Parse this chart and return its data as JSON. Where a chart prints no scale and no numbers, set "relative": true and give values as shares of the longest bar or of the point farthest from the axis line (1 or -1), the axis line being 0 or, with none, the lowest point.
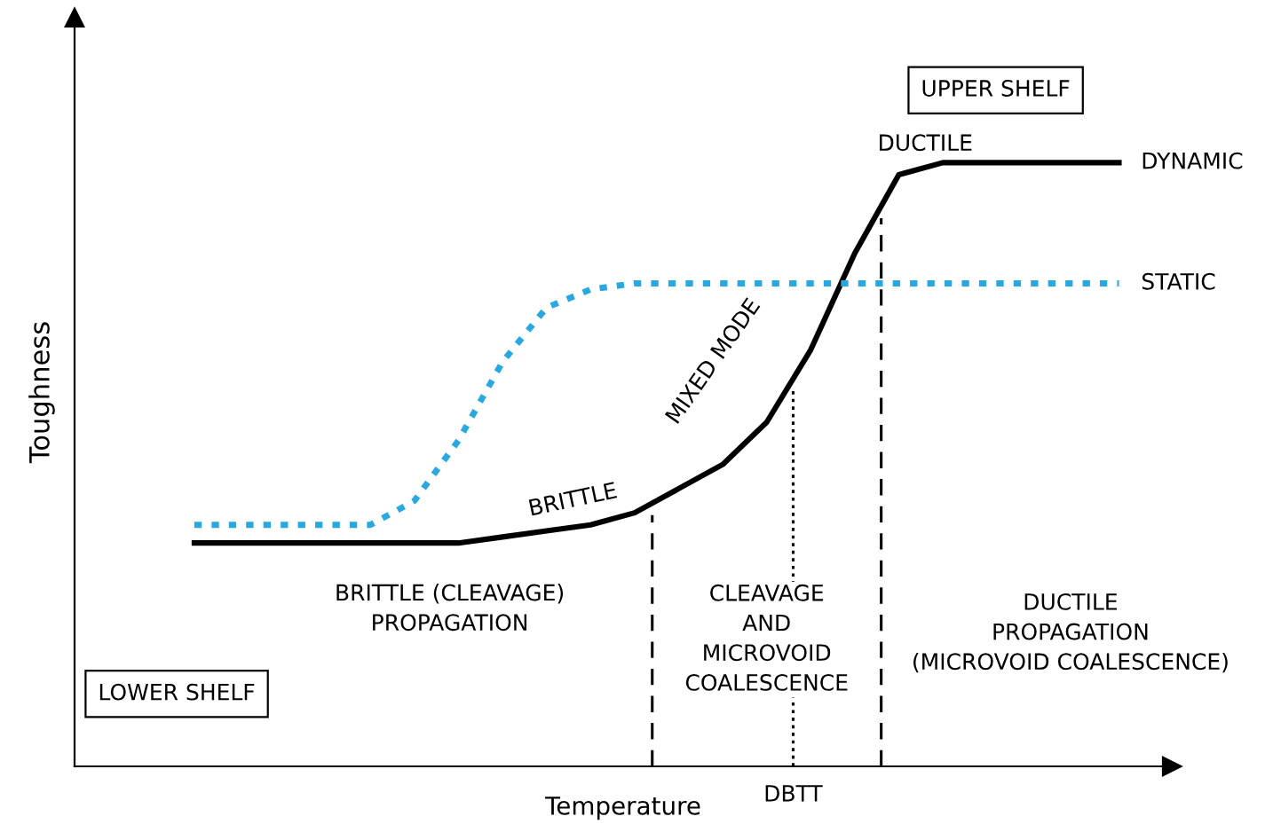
{
  "chart_data": {
    "type": "line",
    "relative": true,
    "xlabel": "Temperature",
    "ylabel": "Toughness",
    "categories": [
      null,
      null,
      null,
      null,
      null,
      null,
      null,
      null,
      null,
      null,
      null,
      null,
      null,
      null,
      null,
      null,
      null,
      null,
      null,
      null,
      null,
      null
    ],
    "series": [
      {
        "name": "DYNAMIC",
        "color": "#000000",
        "line_style": "solid",
        "values": [
          0.37,
          0.37,
          0.37,
          0.37,
          0.37,
          0.37,
          0.37,
          0.38,
          0.39,
          0.4,
          0.42,
          0.46,
          0.5,
          0.57,
          0.69,
          0.85,
          0.98,
          1,
          1,
          1,
          1,
          1
        ]
      },
      {
        "name": "STATIC",
        "color": "#29a8e0",
        "line_style": "dotted",
        "values": [
          0.4,
          0.4,
          0.4,
          0.4,
          0.4,
          0.44,
          0.54,
          0.67,
          0.76,
          0.79,
          0.8,
          0.8,
          0.8,
          0.8,
          0.8,
          0.8,
          0.8,
          0.8,
          0.8,
          0.8,
          0.8,
          0.8
        ]
      }
    ],
    "annotations": [
      "UPPER SHELF",
      "LOWER SHELF",
      "BRITTLE (CLEAVAGE)\nPROPAGATION",
      "CLEAVAGE\nAND\nMICROVOID\nCOALESCENCE",
      "DUCTILE\nPROPAGATION\n(MICROVOID COALESCENCE)",
      "BRITTLE",
      "MIXED MODE",
      "DUCTILE",
      "DBTT"
    ]
  }
}
